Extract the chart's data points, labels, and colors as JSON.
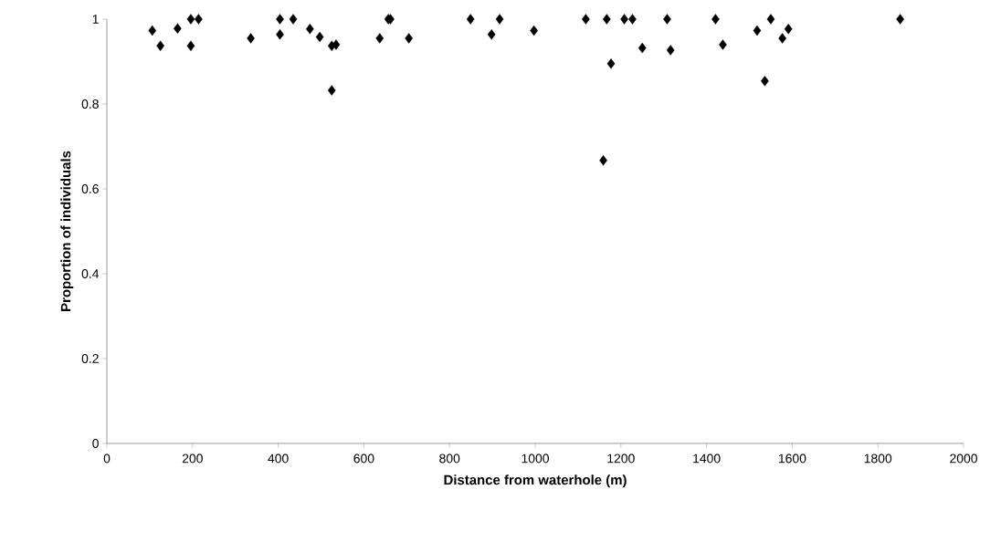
{
  "chart_data": {
    "type": "scatter",
    "xlabel": "Distance from waterhole (m)",
    "ylabel": "Proportion of individuals",
    "x": [
      106,
      125,
      165,
      196,
      196,
      214,
      336,
      404,
      404,
      435,
      474,
      497,
      525,
      535,
      525,
      637,
      657,
      662,
      705,
      849,
      898,
      917,
      997,
      1118,
      1159,
      1167,
      1177,
      1208,
      1227,
      1250,
      1308,
      1316,
      1421,
      1438,
      1518,
      1536,
      1550,
      1577,
      1591,
      1852
    ],
    "values": [
      0.973,
      0.937,
      0.978,
      1,
      0.937,
      1,
      0.955,
      1,
      0.964,
      1,
      0.977,
      0.958,
      0.937,
      0.94,
      0.832,
      0.955,
      1,
      1,
      0.955,
      1,
      0.964,
      1,
      0.973,
      1,
      0.667,
      1,
      0.895,
      1,
      1,
      0.932,
      1,
      0.927,
      1,
      0.94,
      0.973,
      0.854,
      1,
      0.955,
      0.977,
      1
    ],
    "color": "#000000",
    "marker": "diamond",
    "xlim": [
      0,
      2000
    ],
    "ylim": [
      0,
      1
    ],
    "xticks": [
      0,
      200,
      400,
      600,
      800,
      1000,
      1200,
      1400,
      1600,
      1800,
      2000
    ],
    "yticks": [
      0,
      0.2,
      0.4,
      0.6,
      0.8,
      1
    ]
  }
}
